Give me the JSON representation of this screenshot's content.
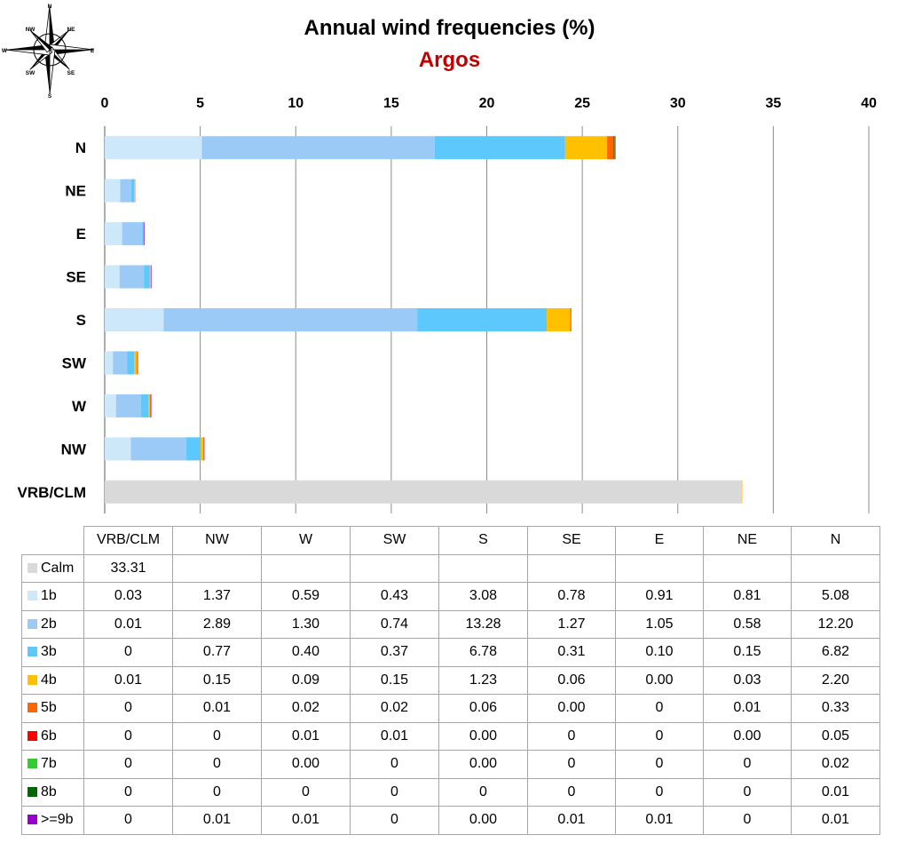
{
  "title": "Annual wind frequencies (%)",
  "subtitle": "Argos",
  "compass": {
    "labels": [
      "N",
      "NE",
      "E",
      "SE",
      "S",
      "SW",
      "W",
      "NW"
    ]
  },
  "chart_data": {
    "type": "bar",
    "orientation": "horizontal",
    "stacked": true,
    "title": "Annual wind frequencies (%)",
    "subtitle": "Argos",
    "categories": [
      "N",
      "NE",
      "E",
      "SE",
      "S",
      "SW",
      "W",
      "NW",
      "VRB/CLM"
    ],
    "xlim": [
      0,
      40
    ],
    "xticks": [
      0,
      5,
      10,
      15,
      20,
      25,
      30,
      35,
      40
    ],
    "x_axis_position": "top",
    "grid": true,
    "series": [
      {
        "name": "Calm",
        "color": "#d9d9d9",
        "values": [
          0,
          0,
          0,
          0,
          0,
          0,
          0,
          0,
          33.31
        ]
      },
      {
        "name": "1b",
        "color": "#cce8f9",
        "values": [
          5.08,
          0.81,
          0.91,
          0.78,
          3.08,
          0.43,
          0.59,
          1.37,
          0.03
        ]
      },
      {
        "name": "2b",
        "color": "#9ccaf7",
        "values": [
          12.2,
          0.58,
          1.05,
          1.27,
          13.28,
          0.74,
          1.3,
          2.89,
          0.01
        ]
      },
      {
        "name": "3b",
        "color": "#5cc8fb",
        "values": [
          6.82,
          0.15,
          0.1,
          0.31,
          6.78,
          0.37,
          0.4,
          0.77,
          0
        ]
      },
      {
        "name": "4b",
        "color": "#ffc000",
        "values": [
          2.2,
          0.03,
          0.0,
          0.06,
          1.23,
          0.15,
          0.09,
          0.15,
          0.01
        ]
      },
      {
        "name": "5b",
        "color": "#ff6600",
        "values": [
          0.33,
          0.01,
          0,
          0.0,
          0.06,
          0.02,
          0.02,
          0.01,
          0
        ]
      },
      {
        "name": "6b",
        "color": "#ff0000",
        "values": [
          0.05,
          0.0,
          0,
          0,
          0.0,
          0.01,
          0.01,
          0,
          0
        ]
      },
      {
        "name": "7b",
        "color": "#33cc33",
        "values": [
          0.02,
          0,
          0,
          0,
          0.0,
          0,
          0.0,
          0,
          0
        ]
      },
      {
        "name": "8b",
        "color": "#006600",
        "values": [
          0.01,
          0,
          0,
          0,
          0,
          0,
          0,
          0,
          0
        ]
      },
      {
        "name": ">=9b",
        "color": "#9900cc",
        "values": [
          0.01,
          0,
          0.01,
          0.01,
          0.0,
          0,
          0.01,
          0.01,
          0
        ]
      }
    ]
  },
  "table": {
    "columns": [
      "VRB/CLM",
      "NW",
      "W",
      "SW",
      "S",
      "SE",
      "E",
      "NE",
      "N"
    ],
    "rows": [
      {
        "label": "Calm",
        "color": "#d9d9d9",
        "cells": [
          "33.31",
          "",
          "",
          "",
          "",
          "",
          "",
          "",
          ""
        ]
      },
      {
        "label": "1b",
        "color": "#cce8f9",
        "cells": [
          "0.03",
          "1.37",
          "0.59",
          "0.43",
          "3.08",
          "0.78",
          "0.91",
          "0.81",
          "5.08"
        ]
      },
      {
        "label": "2b",
        "color": "#9ccaf7",
        "cells": [
          "0.01",
          "2.89",
          "1.30",
          "0.74",
          "13.28",
          "1.27",
          "1.05",
          "0.58",
          "12.20"
        ]
      },
      {
        "label": "3b",
        "color": "#5cc8fb",
        "cells": [
          "0",
          "0.77",
          "0.40",
          "0.37",
          "6.78",
          "0.31",
          "0.10",
          "0.15",
          "6.82"
        ]
      },
      {
        "label": "4b",
        "color": "#ffc000",
        "cells": [
          "0.01",
          "0.15",
          "0.09",
          "0.15",
          "1.23",
          "0.06",
          "0.00",
          "0.03",
          "2.20"
        ]
      },
      {
        "label": "5b",
        "color": "#ff6600",
        "cells": [
          "0",
          "0.01",
          "0.02",
          "0.02",
          "0.06",
          "0.00",
          "0",
          "0.01",
          "0.33"
        ]
      },
      {
        "label": "6b",
        "color": "#ff0000",
        "cells": [
          "0",
          "0",
          "0.01",
          "0.01",
          "0.00",
          "0",
          "0",
          "0.00",
          "0.05"
        ]
      },
      {
        "label": "7b",
        "color": "#33cc33",
        "cells": [
          "0",
          "0",
          "0.00",
          "0",
          "0.00",
          "0",
          "0",
          "0",
          "0.02"
        ]
      },
      {
        "label": "8b",
        "color": "#006600",
        "cells": [
          "0",
          "0",
          "0",
          "0",
          "0",
          "0",
          "0",
          "0",
          "0.01"
        ]
      },
      {
        "label": ">=9b",
        "color": "#9900cc",
        "cells": [
          "0",
          "0.01",
          "0.01",
          "0",
          "0.00",
          "0.01",
          "0.01",
          "0",
          "0.01"
        ]
      }
    ]
  }
}
